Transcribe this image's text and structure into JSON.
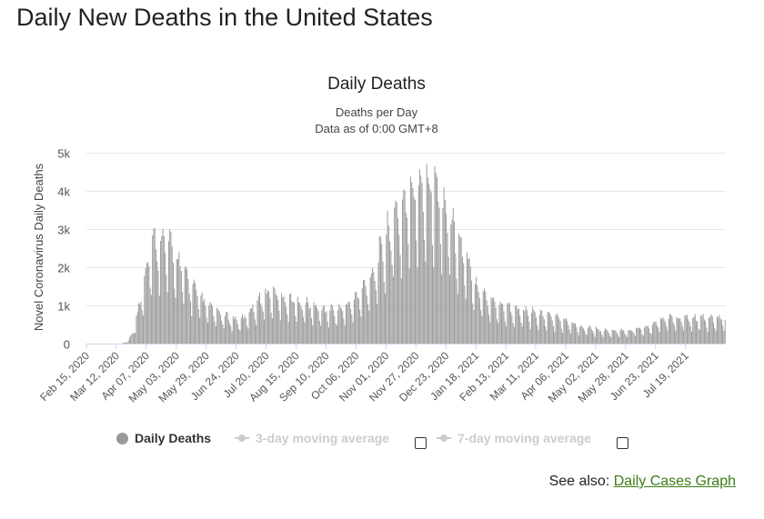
{
  "page": {
    "heading": "Daily New Deaths in the United States"
  },
  "see_also": {
    "prefix": "See also: ",
    "link_label": "Daily Cases Graph"
  },
  "legend": {
    "items": [
      {
        "label": "Daily Deaths",
        "active": true,
        "color": "#999999"
      },
      {
        "label": "3-day moving average",
        "active": false,
        "color": "#cccccc"
      },
      {
        "label": "7-day moving average",
        "active": false,
        "color": "#cccccc"
      }
    ]
  },
  "chart_data": {
    "type": "bar",
    "title": "Daily Deaths",
    "subtitle_line1": "Deaths per Day",
    "subtitle_line2": "Data as of 0:00 GMT+8",
    "ylabel": "Novel Coronavirus Daily Deaths",
    "xlabel": "",
    "ylim": [
      0,
      5000
    ],
    "y_ticks": [
      0,
      1000,
      2000,
      3000,
      4000,
      5000
    ],
    "y_tick_labels": [
      "0",
      "1k",
      "2k",
      "3k",
      "4k",
      "5k"
    ],
    "x_tick_labels": [
      "Feb 15, 2020",
      "Mar 12, 2020",
      "Apr 07, 2020",
      "May 03, 2020",
      "May 29, 2020",
      "Jun 24, 2020",
      "Jul 20, 2020",
      "Aug 15, 2020",
      "Sep 10, 2020",
      "Oct 06, 2020",
      "Nov 01, 2020",
      "Nov 27, 2020",
      "Dec 23, 2020",
      "Jan 18, 2021",
      "Feb 13, 2021",
      "Mar 11, 2021",
      "Apr 06, 2021",
      "May 02, 2021",
      "May 28, 2021",
      "Jun 23, 2021",
      "Jul 19, 2021"
    ],
    "start_date": "Feb 15, 2020",
    "day_count": 555,
    "series": [
      {
        "name": "Daily Deaths",
        "color": "#999999",
        "anchors_day_value": [
          [
            0,
            0
          ],
          [
            30,
            0
          ],
          [
            36,
            60
          ],
          [
            40,
            300
          ],
          [
            44,
            700
          ],
          [
            48,
            1300
          ],
          [
            52,
            1900
          ],
          [
            56,
            2300
          ],
          [
            60,
            2450
          ],
          [
            64,
            2550
          ],
          [
            68,
            2450
          ],
          [
            72,
            2300
          ],
          [
            76,
            2150
          ],
          [
            80,
            1950
          ],
          [
            84,
            1750
          ],
          [
            88,
            1550
          ],
          [
            92,
            1350
          ],
          [
            96,
            1200
          ],
          [
            100,
            1050
          ],
          [
            104,
            950
          ],
          [
            108,
            850
          ],
          [
            112,
            760
          ],
          [
            116,
            700
          ],
          [
            120,
            660
          ],
          [
            124,
            620
          ],
          [
            128,
            580
          ],
          [
            132,
            560
          ],
          [
            136,
            600
          ],
          [
            140,
            720
          ],
          [
            144,
            880
          ],
          [
            148,
            1000
          ],
          [
            152,
            1100
          ],
          [
            156,
            1180
          ],
          [
            160,
            1220
          ],
          [
            164,
            1180
          ],
          [
            168,
            1120
          ],
          [
            172,
            1080
          ],
          [
            176,
            1060
          ],
          [
            180,
            1030
          ],
          [
            184,
            990
          ],
          [
            188,
            960
          ],
          [
            192,
            930
          ],
          [
            196,
            900
          ],
          [
            200,
            850
          ],
          [
            204,
            820
          ],
          [
            208,
            810
          ],
          [
            212,
            800
          ],
          [
            216,
            810
          ],
          [
            220,
            840
          ],
          [
            224,
            880
          ],
          [
            228,
            950
          ],
          [
            232,
            1050
          ],
          [
            236,
            1180
          ],
          [
            240,
            1320
          ],
          [
            244,
            1480
          ],
          [
            248,
            1700
          ],
          [
            252,
            1950
          ],
          [
            256,
            2250
          ],
          [
            260,
            2550
          ],
          [
            264,
            2800
          ],
          [
            268,
            3000
          ],
          [
            272,
            3200
          ],
          [
            276,
            3350
          ],
          [
            280,
            3500
          ],
          [
            284,
            3650
          ],
          [
            288,
            3800
          ],
          [
            292,
            3950
          ],
          [
            296,
            3950
          ],
          [
            300,
            3850
          ],
          [
            304,
            3650
          ],
          [
            308,
            3450
          ],
          [
            312,
            3200
          ],
          [
            316,
            2950
          ],
          [
            320,
            2650
          ],
          [
            324,
            2350
          ],
          [
            328,
            2050
          ],
          [
            332,
            1800
          ],
          [
            336,
            1550
          ],
          [
            340,
            1350
          ],
          [
            344,
            1200
          ],
          [
            348,
            1100
          ],
          [
            352,
            1020
          ],
          [
            356,
            960
          ],
          [
            360,
            910
          ],
          [
            364,
            870
          ],
          [
            368,
            840
          ],
          [
            372,
            800
          ],
          [
            376,
            780
          ],
          [
            380,
            760
          ],
          [
            384,
            740
          ],
          [
            388,
            720
          ],
          [
            392,
            700
          ],
          [
            396,
            680
          ],
          [
            400,
            660
          ],
          [
            404,
            640
          ],
          [
            408,
            610
          ],
          [
            412,
            570
          ],
          [
            416,
            530
          ],
          [
            420,
            490
          ],
          [
            424,
            450
          ],
          [
            428,
            420
          ],
          [
            432,
            400
          ],
          [
            436,
            380
          ],
          [
            440,
            360
          ],
          [
            444,
            340
          ],
          [
            448,
            320
          ],
          [
            452,
            305
          ],
          [
            456,
            295
          ],
          [
            460,
            290
          ],
          [
            464,
            300
          ],
          [
            468,
            310
          ],
          [
            472,
            320
          ],
          [
            476,
            340
          ],
          [
            480,
            360
          ],
          [
            484,
            390
          ],
          [
            488,
            420
          ],
          [
            492,
            460
          ],
          [
            496,
            520
          ],
          [
            500,
            600
          ]
        ]
      }
    ]
  }
}
